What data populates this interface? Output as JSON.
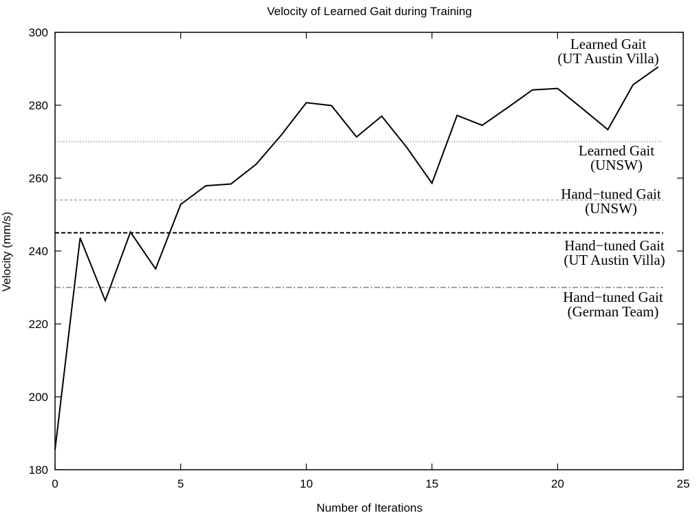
{
  "chart_data": {
    "type": "line",
    "title": "Velocity of Learned Gait during Training",
    "xlabel": "Number of Iterations",
    "ylabel": "Velocity (mm/s)",
    "xlim": [
      0,
      25
    ],
    "ylim": [
      180,
      300
    ],
    "xticks": [
      0,
      5,
      10,
      15,
      20,
      25
    ],
    "yticks": [
      180,
      200,
      220,
      240,
      260,
      280,
      300
    ],
    "grid": false,
    "series": [
      {
        "name_lines": [
          "Learned Gait",
          "(UT Austin Villa)"
        ],
        "x": [
          0,
          1,
          2,
          3,
          4,
          5,
          6,
          7,
          8,
          9,
          10,
          11,
          12,
          13,
          14,
          15,
          16,
          17,
          18,
          19,
          20,
          21,
          22,
          23,
          24
        ],
        "y": [
          185.5,
          243.6,
          226.4,
          245.2,
          235.1,
          252.8,
          257.9,
          258.4,
          263.8,
          271.8,
          280.7,
          279.9,
          271.3,
          277.0,
          268.4,
          258.6,
          277.2,
          274.5,
          279.3,
          284.2,
          284.6,
          279.0,
          273.3,
          285.6,
          290.5
        ]
      }
    ],
    "reference_lines": [
      {
        "value": 270,
        "style": "dotted",
        "label_lines": [
          "Learned Gait",
          "(UNSW)"
        ]
      },
      {
        "value": 254,
        "style": "dashed-fine",
        "label_lines": [
          "Hand−tuned Gait",
          "(UNSW)"
        ]
      },
      {
        "value": 245,
        "style": "dashed-bold",
        "label_lines": [
          "Hand−tuned Gait",
          "(UT Austin Villa)"
        ]
      },
      {
        "value": 230,
        "style": "dashdot",
        "label_lines": [
          "Hand−tuned Gait",
          "(German Team)"
        ]
      }
    ]
  }
}
